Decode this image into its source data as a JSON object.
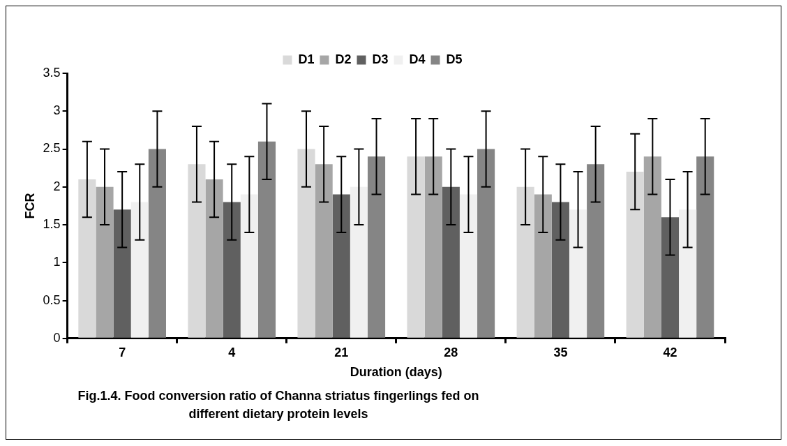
{
  "chart_data": {
    "type": "bar",
    "xlabel": "Duration (days)",
    "ylabel": "FCR",
    "categories": [
      "7",
      "4",
      "21",
      "28",
      "35",
      "42"
    ],
    "series": [
      {
        "name": "D1",
        "color": "#d9d9d9",
        "values": [
          2.1,
          2.3,
          2.5,
          2.4,
          2.0,
          2.2
        ],
        "errors": [
          0.5,
          0.5,
          0.5,
          0.5,
          0.5,
          0.5
        ]
      },
      {
        "name": "D2",
        "color": "#a6a6a6",
        "values": [
          2.0,
          2.1,
          2.3,
          2.4,
          1.9,
          2.4
        ],
        "errors": [
          0.5,
          0.5,
          0.5,
          0.5,
          0.5,
          0.5
        ]
      },
      {
        "name": "D3",
        "color": "#606060",
        "values": [
          1.7,
          1.8,
          1.9,
          2.0,
          1.8,
          1.6
        ],
        "errors": [
          0.5,
          0.5,
          0.5,
          0.5,
          0.5,
          0.5
        ]
      },
      {
        "name": "D4",
        "color": "#f0f0f0",
        "values": [
          1.8,
          1.9,
          2.0,
          1.9,
          1.7,
          1.7
        ],
        "errors": [
          0.5,
          0.5,
          0.5,
          0.5,
          0.5,
          0.5
        ]
      },
      {
        "name": "D5",
        "color": "#858585",
        "values": [
          2.5,
          2.6,
          2.4,
          2.5,
          2.3,
          2.4
        ],
        "errors": [
          0.5,
          0.5,
          0.5,
          0.5,
          0.5,
          0.5
        ]
      }
    ],
    "ylim": [
      0,
      3.5
    ],
    "yticks": [
      0,
      0.5,
      1,
      1.5,
      2,
      2.5,
      3,
      3.5
    ],
    "legend": "top",
    "annotations": [
      "Fig.1.4. Food conversion ratio of Channa striatus fingerlings fed on different dietary protein levels"
    ]
  }
}
